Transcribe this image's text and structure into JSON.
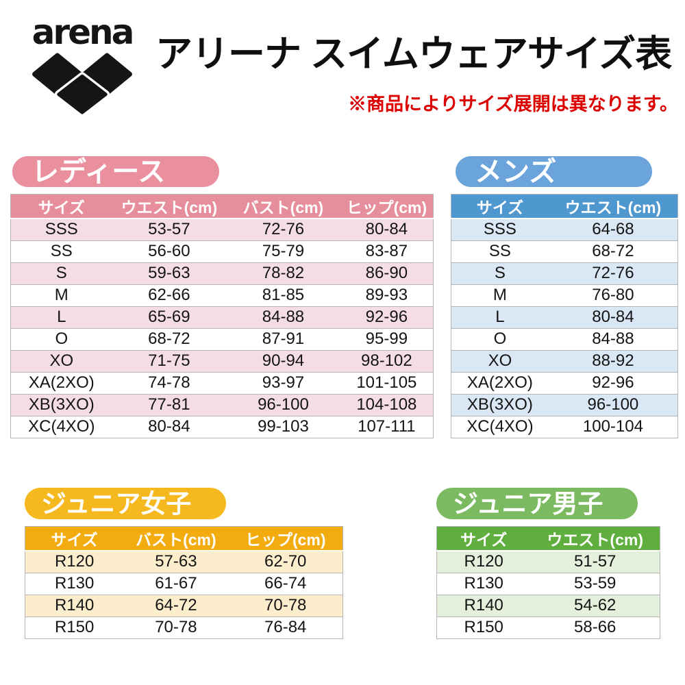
{
  "header": {
    "brand": "arena",
    "title": "アリーナ スイムウェアサイズ表",
    "note": "※商品によりサイズ展開は異なります。",
    "note_color": "#dd0000"
  },
  "sections": [
    {
      "id": "ladies",
      "label": "レディース",
      "pill_color": "#ea8f9d",
      "header_bg": "#e78e9c",
      "alt_row_bg": "#f4dee4",
      "columns": [
        "サイズ",
        "ウエスト(cm)",
        "バスト(cm)",
        "ヒップ(cm)"
      ],
      "rows": [
        [
          "SSS",
          "53-57",
          "72-76",
          "80-84"
        ],
        [
          "SS",
          "56-60",
          "75-79",
          "83-87"
        ],
        [
          "S",
          "59-63",
          "78-82",
          "86-90"
        ],
        [
          "M",
          "62-66",
          "81-85",
          "89-93"
        ],
        [
          "L",
          "65-69",
          "84-88",
          "92-96"
        ],
        [
          "O",
          "68-72",
          "87-91",
          "95-99"
        ],
        [
          "XO",
          "71-75",
          "90-94",
          "98-102"
        ],
        [
          "XA(2XO)",
          "74-78",
          "93-97",
          "101-105"
        ],
        [
          "XB(3XO)",
          "77-81",
          "96-100",
          "104-108"
        ],
        [
          "XC(4XO)",
          "80-84",
          "99-103",
          "107-111"
        ]
      ]
    },
    {
      "id": "mens",
      "label": "メンズ",
      "pill_color": "#6ba4db",
      "header_bg": "#4f97cf",
      "alt_row_bg": "#dae8f5",
      "columns": [
        "サイズ",
        "ウエスト(cm)"
      ],
      "rows": [
        [
          "SSS",
          "64-68"
        ],
        [
          "SS",
          "68-72"
        ],
        [
          "S",
          "72-76"
        ],
        [
          "M",
          "76-80"
        ],
        [
          "L",
          "80-84"
        ],
        [
          "O",
          "84-88"
        ],
        [
          "XO",
          "88-92"
        ],
        [
          "XA(2XO)",
          "92-96"
        ],
        [
          "XB(3XO)",
          "96-100"
        ],
        [
          "XC(4XO)",
          "100-104"
        ]
      ]
    },
    {
      "id": "junior-girls",
      "label": "ジュニア女子",
      "pill_color": "#f6b81f",
      "header_bg": "#f2ac10",
      "alt_row_bg": "#fceecd",
      "columns": [
        "サイズ",
        "バスト(cm)",
        "ヒップ(cm)"
      ],
      "rows": [
        [
          "R120",
          "57-63",
          "62-70"
        ],
        [
          "R130",
          "61-67",
          "66-74"
        ],
        [
          "R140",
          "64-72",
          "70-78"
        ],
        [
          "R150",
          "70-78",
          "76-84"
        ]
      ]
    },
    {
      "id": "junior-boys",
      "label": "ジュニア男子",
      "pill_color": "#7cba62",
      "header_bg": "#5fae3e",
      "alt_row_bg": "#e4f0dc",
      "columns": [
        "サイズ",
        "ウエスト(cm)"
      ],
      "rows": [
        [
          "R120",
          "51-57"
        ],
        [
          "R130",
          "53-59"
        ],
        [
          "R140",
          "54-62"
        ],
        [
          "R150",
          "58-66"
        ]
      ]
    }
  ]
}
